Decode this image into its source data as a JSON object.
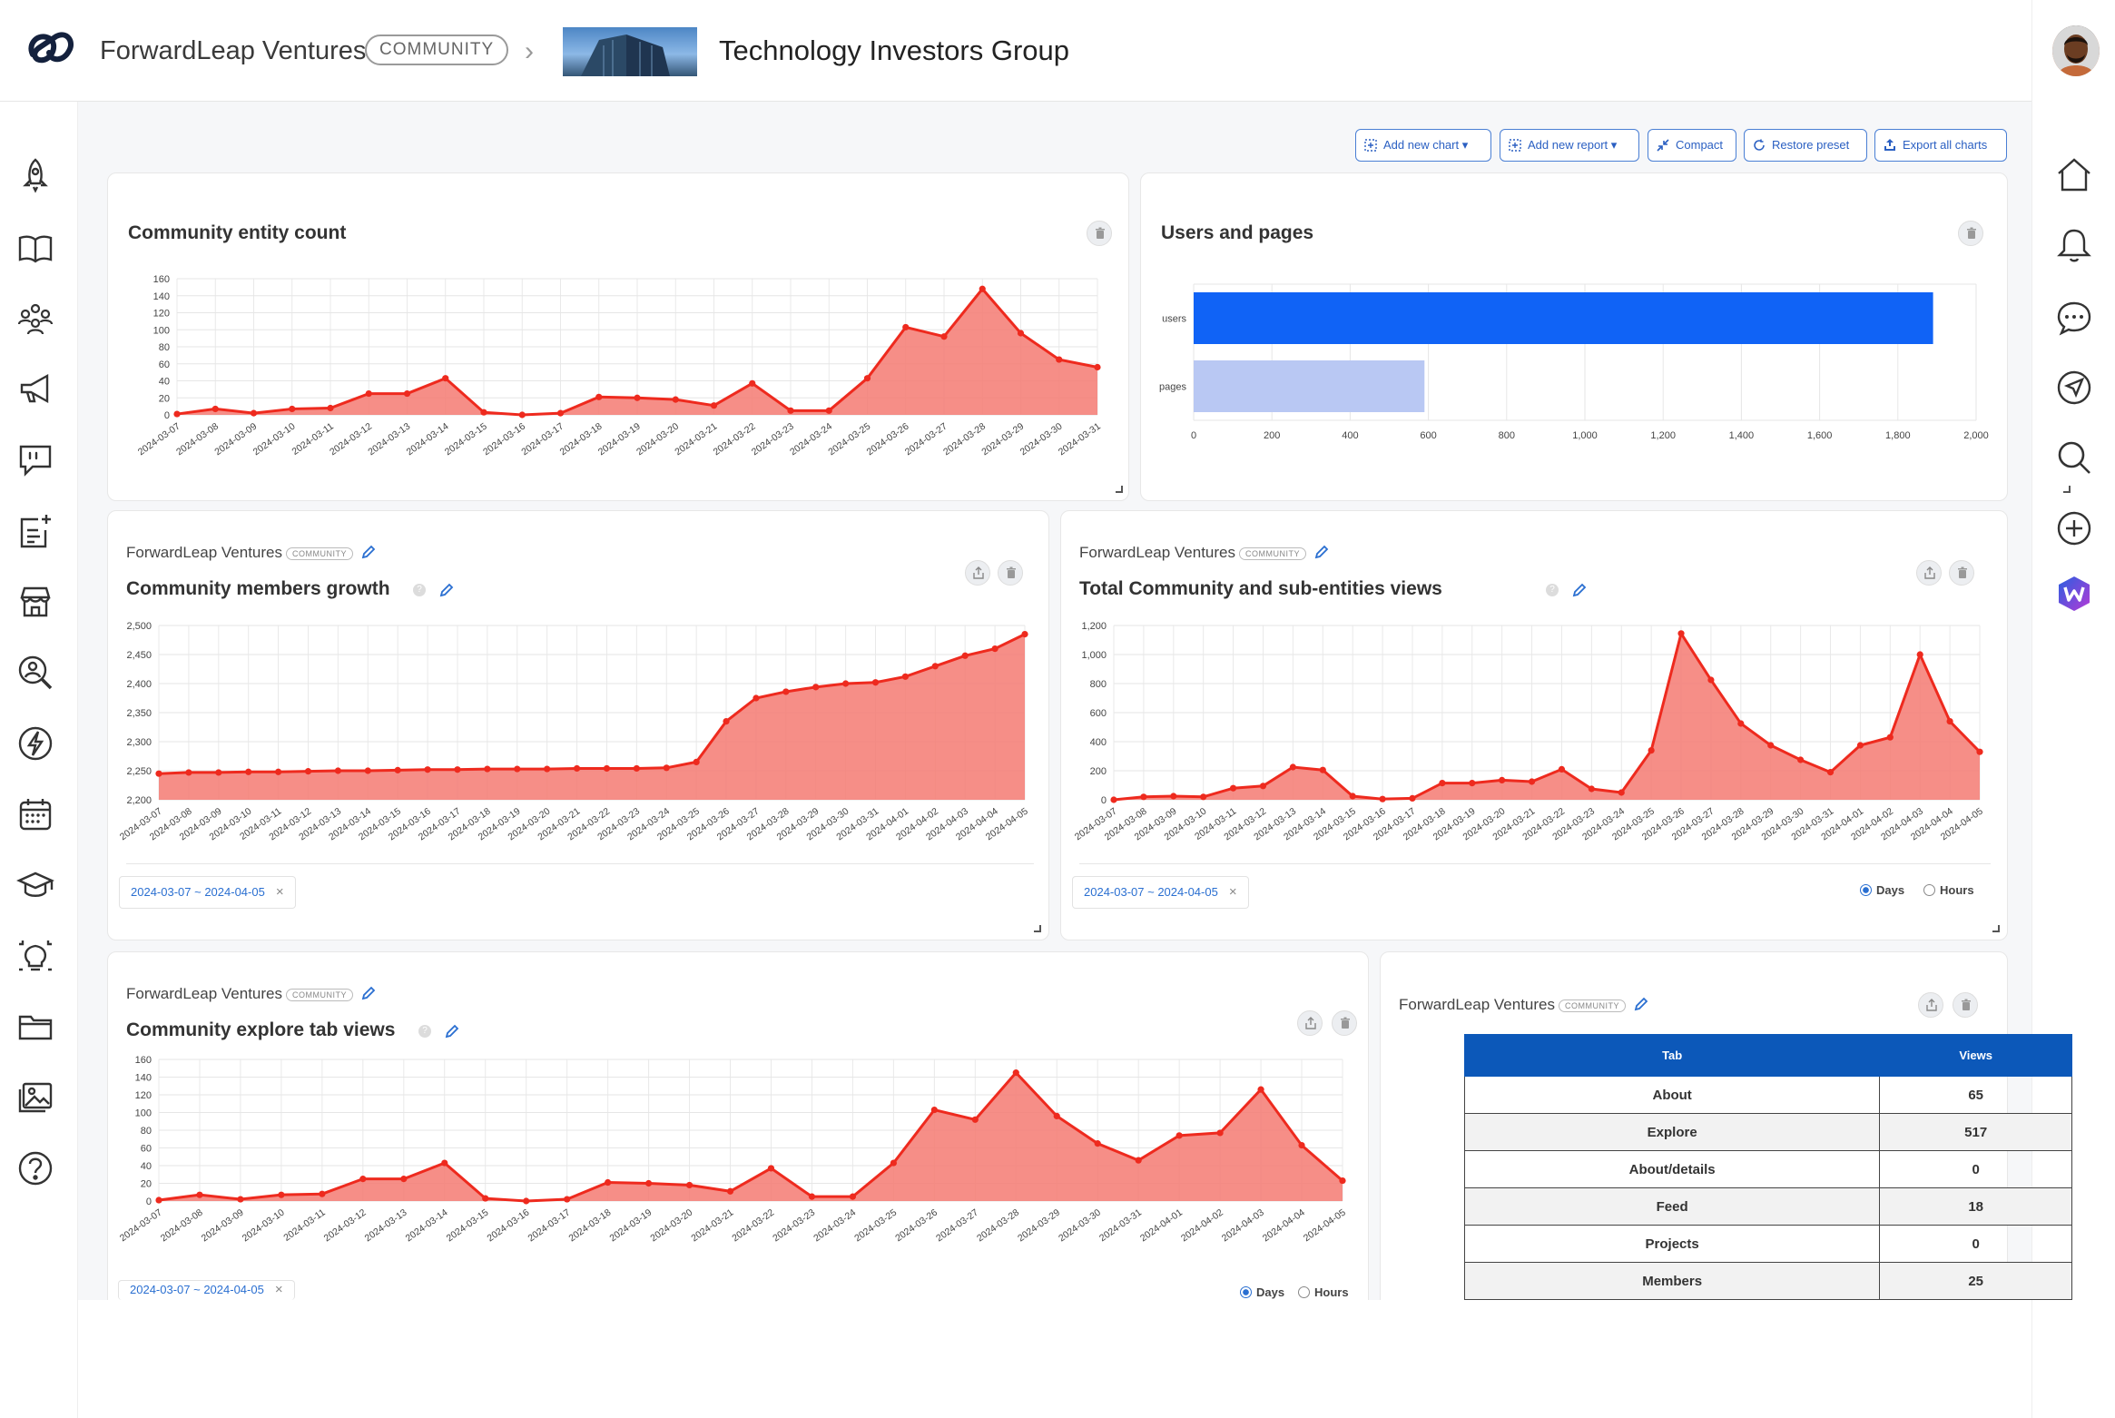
{
  "header": {
    "brand": "ForwardLeap Ventures",
    "badge": "COMMUNITY",
    "group_title": "Technology Investors Group"
  },
  "sidebar_left": {
    "icons": [
      "rocket-icon",
      "book-icon",
      "people-icon",
      "megaphone-icon",
      "chat-quote-icon",
      "add-post-icon",
      "store-icon",
      "search-person-icon",
      "lightning-icon",
      "calendar-icon",
      "graduation-icon",
      "lightbulb-icon",
      "folder-icon",
      "gallery-icon",
      "help-icon"
    ]
  },
  "sidebar_right": {
    "icons": [
      "home-icon",
      "bell-icon",
      "chat-icon",
      "send-icon",
      "search-icon",
      "plus-icon",
      "app-logo-icon"
    ]
  },
  "toolbar": {
    "add_chart": "Add new chart",
    "add_report": "Add new report",
    "compact": "Compact",
    "restore": "Restore preset",
    "export": "Export all charts"
  },
  "cards": {
    "entity_count": {
      "title": "Community entity count"
    },
    "users_pages": {
      "title": "Users and pages"
    },
    "members_growth": {
      "owner": "ForwardLeap Ventures",
      "badge": "COMMUNITY",
      "title": "Community members growth",
      "range": "2024-03-07 ~ 2024-04-05"
    },
    "total_views": {
      "owner": "ForwardLeap Ventures",
      "badge": "COMMUNITY",
      "title": "Total Community and sub-entities views",
      "range": "2024-03-07 ~ 2024-04-05",
      "radio_days": "Days",
      "radio_hours": "Hours"
    },
    "explore_views": {
      "owner": "ForwardLeap Ventures",
      "badge": "COMMUNITY",
      "title": "Community explore tab views",
      "range": "2024-03-07 ~ 2024-04-05",
      "radio_days": "Days",
      "radio_hours": "Hours"
    },
    "tab_table": {
      "owner": "ForwardLeap Ventures",
      "badge": "COMMUNITY",
      "col_tab": "Tab",
      "col_views": "Views",
      "rows": [
        {
          "tab": "About",
          "views": "65"
        },
        {
          "tab": "Explore",
          "views": "517"
        },
        {
          "tab": "About/details",
          "views": "0"
        },
        {
          "tab": "Feed",
          "views": "18"
        },
        {
          "tab": "Projects",
          "views": "0"
        },
        {
          "tab": "Members",
          "views": "25"
        }
      ]
    }
  },
  "chart_data": [
    {
      "type": "area",
      "title": "Community entity count",
      "x": [
        "2024-03-07",
        "2024-03-08",
        "2024-03-09",
        "2024-03-10",
        "2024-03-11",
        "2024-03-12",
        "2024-03-13",
        "2024-03-14",
        "2024-03-15",
        "2024-03-16",
        "2024-03-17",
        "2024-03-18",
        "2024-03-19",
        "2024-03-20",
        "2024-03-21",
        "2024-03-22",
        "2024-03-23",
        "2024-03-24",
        "2024-03-25",
        "2024-03-26",
        "2024-03-27",
        "2024-03-28",
        "2024-03-29",
        "2024-03-30",
        "2024-03-31"
      ],
      "values": [
        1,
        7,
        2,
        7,
        8,
        25,
        25,
        43,
        3,
        0,
        2,
        21,
        20,
        18,
        11,
        37,
        5,
        5,
        43,
        103,
        92,
        148,
        96,
        65,
        56
      ],
      "ylim": [
        0,
        160
      ],
      "yticks": [
        0,
        20,
        40,
        60,
        80,
        100,
        120,
        140,
        160
      ],
      "color": "#ee2a1e"
    },
    {
      "type": "bar",
      "title": "Users and pages",
      "orientation": "horizontal",
      "categories": [
        "users",
        "pages"
      ],
      "values": [
        1890,
        590
      ],
      "colors": [
        "#1063f6",
        "#b9c8f3"
      ],
      "xlim": [
        0,
        2000
      ],
      "xticks": [
        "0",
        "200",
        "400",
        "600",
        "800",
        "1,000",
        "1,200",
        "1,400",
        "1,600",
        "1,800",
        "2,000"
      ]
    },
    {
      "type": "area",
      "title": "Community members growth",
      "x": [
        "2024-03-07",
        "2024-03-08",
        "2024-03-09",
        "2024-03-10",
        "2024-03-11",
        "2024-03-12",
        "2024-03-13",
        "2024-03-14",
        "2024-03-15",
        "2024-03-16",
        "2024-03-17",
        "2024-03-18",
        "2024-03-19",
        "2024-03-20",
        "2024-03-21",
        "2024-03-22",
        "2024-03-23",
        "2024-03-24",
        "2024-03-25",
        "2024-03-26",
        "2024-03-27",
        "2024-03-28",
        "2024-03-29",
        "2024-03-30",
        "2024-03-31",
        "2024-04-01",
        "2024-04-02",
        "2024-04-03",
        "2024-04-04",
        "2024-04-05"
      ],
      "values": [
        2245,
        2247,
        2247,
        2248,
        2248,
        2249,
        2250,
        2250,
        2251,
        2252,
        2252,
        2253,
        2253,
        2253,
        2254,
        2254,
        2254,
        2255,
        2265,
        2335,
        2375,
        2386,
        2394,
        2400,
        2402,
        2412,
        2430,
        2448,
        2460,
        2485
      ],
      "ylim": [
        2200,
        2500
      ],
      "yticks": [
        2200,
        2250,
        2300,
        2350,
        2400,
        2450,
        2500
      ],
      "ytick_labels": [
        "2,200",
        "2,250",
        "2,300",
        "2,350",
        "2,400",
        "2,450",
        "2,500"
      ],
      "color": "#ee2a1e"
    },
    {
      "type": "area",
      "title": "Total Community and sub-entities views",
      "x": [
        "2024-03-07",
        "2024-03-08",
        "2024-03-09",
        "2024-03-10",
        "2024-03-11",
        "2024-03-12",
        "2024-03-13",
        "2024-03-14",
        "2024-03-15",
        "2024-03-16",
        "2024-03-17",
        "2024-03-18",
        "2024-03-19",
        "2024-03-20",
        "2024-03-21",
        "2024-03-22",
        "2024-03-23",
        "2024-03-24",
        "2024-03-25",
        "2024-03-26",
        "2024-03-27",
        "2024-03-28",
        "2024-03-29",
        "2024-03-30",
        "2024-03-31",
        "2024-04-01",
        "2024-04-02",
        "2024-04-03",
        "2024-04-04",
        "2024-04-05"
      ],
      "values": [
        0,
        20,
        25,
        20,
        80,
        95,
        225,
        205,
        25,
        5,
        10,
        115,
        115,
        135,
        125,
        210,
        75,
        50,
        340,
        1145,
        825,
        525,
        375,
        275,
        190,
        375,
        430,
        1000,
        540,
        330
      ],
      "ylim": [
        0,
        1200
      ],
      "yticks": [
        0,
        200,
        400,
        600,
        800,
        1000,
        1200
      ],
      "ytick_labels": [
        "0",
        "200",
        "400",
        "600",
        "800",
        "1,000",
        "1,200"
      ],
      "color": "#ee2a1e"
    },
    {
      "type": "area",
      "title": "Community explore tab views",
      "x": [
        "2024-03-07",
        "2024-03-08",
        "2024-03-09",
        "2024-03-10",
        "2024-03-11",
        "2024-03-12",
        "2024-03-13",
        "2024-03-14",
        "2024-03-15",
        "2024-03-16",
        "2024-03-17",
        "2024-03-18",
        "2024-03-19",
        "2024-03-20",
        "2024-03-21",
        "2024-03-22",
        "2024-03-23",
        "2024-03-24",
        "2024-03-25",
        "2024-03-26",
        "2024-03-27",
        "2024-03-28",
        "2024-03-29",
        "2024-03-30",
        "2024-03-31",
        "2024-04-01",
        "2024-04-02",
        "2024-04-03",
        "2024-04-04",
        "2024-04-05"
      ],
      "values": [
        1,
        7,
        2,
        7,
        8,
        25,
        25,
        43,
        3,
        0,
        2,
        21,
        20,
        18,
        11,
        37,
        5,
        5,
        43,
        103,
        92,
        145,
        96,
        65,
        46,
        74,
        77,
        126,
        63,
        23
      ],
      "ylim": [
        0,
        160
      ],
      "yticks": [
        0,
        20,
        40,
        60,
        80,
        100,
        120,
        140,
        160
      ],
      "color": "#ee2a1e"
    }
  ]
}
